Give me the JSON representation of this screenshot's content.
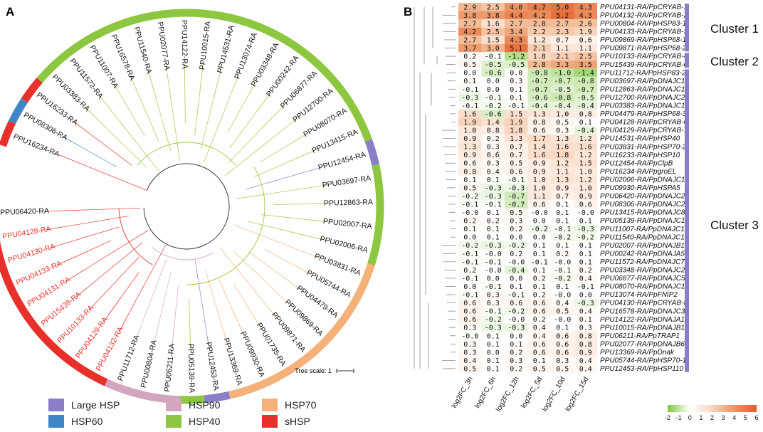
{
  "panel_a": {
    "letter": "A",
    "tree_scale_label": "Tree scale: 1",
    "leaves": [
      {
        "name": "PPU16234-RA",
        "group": "sHSP",
        "color": "black"
      },
      {
        "name": "PPU08306-RA",
        "group": "HSP60",
        "color": "black"
      },
      {
        "name": "PPU16233-RA",
        "group": "sHSP",
        "color": "black"
      },
      {
        "name": "PPU03383-RA",
        "group": "HSP40",
        "color": "black"
      },
      {
        "name": "PPU11572-RA",
        "group": "HSP40",
        "color": "black"
      },
      {
        "name": "PPU11007-RA",
        "group": "HSP40",
        "color": "black"
      },
      {
        "name": "PPU16578-RA",
        "group": "HSP40",
        "color": "black"
      },
      {
        "name": "PPU11540-RA",
        "group": "HSP40",
        "color": "black"
      },
      {
        "name": "PPU02077-RA",
        "group": "HSP40",
        "color": "black"
      },
      {
        "name": "PPU14122-RA",
        "group": "HSP40",
        "color": "black"
      },
      {
        "name": "PPU10015-RA",
        "group": "HSP40",
        "color": "black"
      },
      {
        "name": "PPU14531-RA",
        "group": "HSP40",
        "color": "black"
      },
      {
        "name": "PPU13074-RA",
        "group": "HSP40",
        "color": "black"
      },
      {
        "name": "PPU03348-RA",
        "group": "HSP40",
        "color": "black"
      },
      {
        "name": "PPU00242-RA",
        "group": "HSP40",
        "color": "black"
      },
      {
        "name": "PPU06877-RA",
        "group": "HSP40",
        "color": "black"
      },
      {
        "name": "PPU12700-RA",
        "group": "HSP40",
        "color": "black"
      },
      {
        "name": "PPU08070-RA",
        "group": "HSP40",
        "color": "black"
      },
      {
        "name": "PPU13415-RA",
        "group": "HSP40",
        "color": "black"
      },
      {
        "name": "PPU12454-RA",
        "group": "Large HSP",
        "color": "black"
      },
      {
        "name": "PPU03697-RA",
        "group": "HSP40",
        "color": "black"
      },
      {
        "name": "PPU12863-RA",
        "group": "HSP40",
        "color": "black"
      },
      {
        "name": "PPU02007-RA",
        "group": "HSP40",
        "color": "black"
      },
      {
        "name": "PPU02006-RA",
        "group": "HSP40",
        "color": "black"
      },
      {
        "name": "PPU03831-RA",
        "group": "HSP70",
        "color": "black"
      },
      {
        "name": "PPU05744-RA",
        "group": "HSP70",
        "color": "black"
      },
      {
        "name": "PPU04479-RA",
        "group": "HSP70",
        "color": "black"
      },
      {
        "name": "PPU09869-RA",
        "group": "HSP70",
        "color": "black"
      },
      {
        "name": "PPU09871-RA",
        "group": "HSP70",
        "color": "black"
      },
      {
        "name": "PPU01735-RA",
        "group": "HSP70",
        "color": "black"
      },
      {
        "name": "PPU09930-RA",
        "group": "HSP70",
        "color": "black"
      },
      {
        "name": "PPU13369-RA",
        "group": "HSP70",
        "color": "black"
      },
      {
        "name": "PPU12453-RA",
        "group": "Large HSP",
        "color": "black"
      },
      {
        "name": "PPU05139-RA",
        "group": "HSP40",
        "color": "black"
      },
      {
        "name": "PPU06211-RA",
        "group": "HSP90",
        "color": "black"
      },
      {
        "name": "PPU00804-RA",
        "group": "HSP90",
        "color": "black"
      },
      {
        "name": "PPU11712-RA",
        "group": "HSP90",
        "color": "black"
      },
      {
        "name": "PPU04132-RA",
        "group": "sHSP",
        "color": "red"
      },
      {
        "name": "PPU04129-RA",
        "group": "sHSP",
        "color": "red"
      },
      {
        "name": "PPU10133-RA",
        "group": "sHSP",
        "color": "red"
      },
      {
        "name": "PPU15439-RA",
        "group": "sHSP",
        "color": "red"
      },
      {
        "name": "PPU04131-RA",
        "group": "sHSP",
        "color": "red"
      },
      {
        "name": "PPU04133-RA",
        "group": "sHSP",
        "color": "red"
      },
      {
        "name": "PPU04130-RA",
        "group": "sHSP",
        "color": "red"
      },
      {
        "name": "PPU04128-RA",
        "group": "sHSP",
        "color": "red"
      },
      {
        "name": "PPU06420-RA",
        "group": "sHSP",
        "color": "black"
      }
    ],
    "legend": [
      {
        "label": "Large HSP",
        "color": "#8B7EC8"
      },
      {
        "label": "HSP90",
        "color": "#D4A5BE"
      },
      {
        "label": "HSP70",
        "color": "#F4B27A"
      },
      {
        "label": "HSP60",
        "color": "#3F86C6"
      },
      {
        "label": "HSP40",
        "color": "#8DC63F"
      },
      {
        "label": "sHSP",
        "color": "#E8302A"
      }
    ]
  },
  "panel_b": {
    "letter": "B",
    "columns": [
      "log2FC_3h",
      "log2FC_6h",
      "log2FC_12h",
      "log2FC_5d",
      "log2FC_10d",
      "log2FC_15d"
    ],
    "clusters": [
      "Cluster 1",
      "Cluster 2",
      "Cluster 3"
    ],
    "colorbar_ticks": [
      "-2",
      "-1",
      "0",
      "1",
      "2",
      "3",
      "4",
      "5",
      "6"
    ],
    "rows": [
      {
        "gene": "PPU04131-RA/PpCRYAB-1",
        "values": [
          "2.9",
          "2.5",
          "4.0",
          "4.7",
          "5.0",
          "4.3"
        ]
      },
      {
        "gene": "PPU04132-RA/PpCRYAB-2",
        "values": [
          "3.8",
          "3.8",
          "4.4",
          "4.2",
          "5.2",
          "4.3"
        ]
      },
      {
        "gene": "PPU00804-RA/PpHSP83-1",
        "values": [
          "2.7",
          "1.6",
          "2.7",
          "2.8",
          "2.7",
          "2.6"
        ]
      },
      {
        "gene": "PPU04133-RA/PpCRYAB-3",
        "values": [
          "4.2",
          "2.5",
          "3.4",
          "2.2",
          "2.3",
          "1.9"
        ]
      },
      {
        "gene": "PPU09869-RA/PpHSP68-1",
        "values": [
          "2.7",
          "1.5",
          "4.3",
          "1.2",
          "0.7",
          "0.6"
        ]
      },
      {
        "gene": "PPU09871-RA/PpHSP68-2",
        "values": [
          "3.7",
          "3.0",
          "5.1",
          "2.1",
          "1.1",
          "1.1"
        ]
      },
      {
        "gene": "PPU10133-RA/PpCRYAB-4",
        "values": [
          "0.2",
          "-0.1",
          "-1.2",
          "1.8",
          "2.1",
          "2.5"
        ]
      },
      {
        "gene": "PPU15439-RA/PpCRYAB-6",
        "values": [
          "0.5",
          "-0.5",
          "-0.5",
          "2.8",
          "3.3",
          "3.5"
        ]
      },
      {
        "gene": "PPU11712-RA/PpHSP83-2",
        "values": [
          "0.0",
          "-0.6",
          "0.0",
          "-0.8",
          "-1.0",
          "-1.4"
        ]
      },
      {
        "gene": "PPU03697-RA/PpDNAJC14",
        "values": [
          "0.1",
          "0.0",
          "0.3",
          "-0.7",
          "-0.7",
          "-0.8"
        ]
      },
      {
        "gene": "PPU12863-RA/PpDNAJC17",
        "values": [
          "-0.1",
          "0.0",
          "0.1",
          "-0.7",
          "-0.5",
          "-0.7"
        ]
      },
      {
        "gene": "PPU12700-RA/PpDNAJC2",
        "values": [
          "-0.3",
          "-0.1",
          "0.1",
          "-0.6",
          "-0.8",
          "-0.5"
        ]
      },
      {
        "gene": "PPU03383-RA/PpDNAJC11",
        "values": [
          "-0.1",
          "-0.2",
          "-0.1",
          "-0.4",
          "-0.4",
          "-0.4"
        ]
      },
      {
        "gene": "PPU04479-RA/PpHSP68-3",
        "values": [
          "1.6",
          "-0.6",
          "1.5",
          "1.3",
          "1.0",
          "0.8"
        ]
      },
      {
        "gene": "PPU04128-RA/PpCRYAB-6",
        "values": [
          "1.9",
          "1.4",
          "1.9",
          "0.8",
          "0.5",
          "0.1"
        ]
      },
      {
        "gene": "PPU04129-RA/PpCRYAB-7",
        "values": [
          "1.0",
          "0.8",
          "1.8",
          "0.6",
          "0.3",
          "-0.4"
        ]
      },
      {
        "gene": "PPU14531-RA/PpHSP40",
        "values": [
          "0.9",
          "0.2",
          "1.3",
          "1.7",
          "1.3",
          "1.2"
        ]
      },
      {
        "gene": "PPU03831-RA/PpHSP70-2",
        "values": [
          "1.3",
          "0.3",
          "0.7",
          "1.4",
          "1.6",
          "1.6"
        ]
      },
      {
        "gene": "PPU16233-RA/PpHSP10",
        "values": [
          "0.9",
          "0.6",
          "0.7",
          "1.6",
          "1.8",
          "1.2"
        ]
      },
      {
        "gene": "PPU12454-RA/PpClpB",
        "values": [
          "0.6",
          "0.3",
          "0.5",
          "0.9",
          "1.2",
          "1.5"
        ]
      },
      {
        "gene": "PPU16234-RA/PpgroEL",
        "values": [
          "0.8",
          "0.4",
          "0.6",
          "0.9",
          "1.1",
          "1.0"
        ]
      },
      {
        "gene": "PPU02006-RA/PpDNAJC18",
        "values": [
          "0.1",
          "0.1",
          "-0.1",
          "1.0",
          "1.3",
          "1.2"
        ]
      },
      {
        "gene": "PPU09930-RA/PpHSPA5",
        "values": [
          "0.5",
          "-0.3",
          "-0.3",
          "1.0",
          "0.9",
          "1.0"
        ]
      },
      {
        "gene": "PPU06420-RA/PpDNAJC22",
        "values": [
          "-0.2",
          "-0.3",
          "-0.7",
          "1.1",
          "0.7",
          "0.9"
        ]
      },
      {
        "gene": "PPU08306-RA/PpDNAJC28",
        "values": [
          "-0.1",
          "-0.1",
          "-0.7",
          "0.6",
          "0.1",
          "0.6"
        ]
      },
      {
        "gene": "PPU13415-RA/PpDNAJC8",
        "values": [
          "-0.0",
          "0.1",
          "0.5",
          "-0.0",
          "0.1",
          "-0.0"
        ]
      },
      {
        "gene": "PPU05139-RA/PpDNAJC13",
        "values": [
          "0.2",
          "0.2",
          "0.3",
          "0.0",
          "0.1",
          "0.1"
        ]
      },
      {
        "gene": "PPU11007-RA/PpDNAJC10",
        "values": [
          "0.1",
          "0.1",
          "0.2",
          "-0.2",
          "-0.1",
          "-0.3"
        ]
      },
      {
        "gene": "PPU11540-RA/PpDNAJC16",
        "values": [
          "0.0",
          "0.1",
          "0.0",
          "0.0",
          "-0.2",
          "-0.2"
        ]
      },
      {
        "gene": "PPU02007-RA/PpDNAJB12",
        "values": [
          "-0.2",
          "-0.3",
          "-0.2",
          "0.1",
          "0.1",
          "0.1"
        ]
      },
      {
        "gene": "PPU00242-RA/PpDNAJA5",
        "values": [
          "-0.1",
          "-0.0",
          "0.2",
          "0.1",
          "0.2",
          "0.1"
        ]
      },
      {
        "gene": "PPU11572-RA/PpDNAJC7",
        "values": [
          "-0.1",
          "-0.1",
          "-0.0",
          "-0.1",
          "-0.0",
          "0.1"
        ]
      },
      {
        "gene": "PPU03348-RA/PpDNAJC24",
        "values": [
          "0.2",
          "-0.0",
          "-0.4",
          "0.1",
          "-0.1",
          "0.2"
        ]
      },
      {
        "gene": "PPU06877-RA/PpDNAJC5",
        "values": [
          "-0.1",
          "0.0",
          "0.0",
          "0.2",
          "-0.2",
          "0.4"
        ]
      },
      {
        "gene": "PPU08070-RA/PpDNAJC1",
        "values": [
          "0.0",
          "-0.1",
          "0.1",
          "0.1",
          "0.1",
          "-0.1"
        ]
      },
      {
        "gene": "PPU13074-RA/PpFNIP2",
        "values": [
          "-0.1",
          "0.3",
          "-0.1",
          "0.2",
          "-0.0",
          "0.0"
        ]
      },
      {
        "gene": "PPU04130-RA/PpCRYAB-8",
        "values": [
          "0.6",
          "0.3",
          "0.6",
          "0.6",
          "0.4",
          "-0.3"
        ]
      },
      {
        "gene": "PPU16578-RA/PpDNAJC3",
        "values": [
          "0.6",
          "-0.1",
          "-0.2",
          "0.6",
          "0.5",
          "0.4"
        ]
      },
      {
        "gene": "PPU14122-RA/PpDNAJA1",
        "values": [
          "0.6",
          "-0.2",
          "-0.0",
          "0.2",
          "-0.0",
          "0.1"
        ]
      },
      {
        "gene": "PPU10015-RA/PpDNAJB11",
        "values": [
          "0.3",
          "-0.3",
          "-0.3",
          "0.4",
          "0.1",
          "0.3"
        ]
      },
      {
        "gene": "PPU06211-RA/PpTRAP1",
        "values": [
          "-0.0",
          "0.1",
          "0.0",
          "0.4",
          "0.6",
          "0.8"
        ]
      },
      {
        "gene": "PPU02077-RA/PpDNAJB6",
        "values": [
          "0.3",
          "0.1",
          "0.1",
          "0.6",
          "0.6",
          "0.8"
        ]
      },
      {
        "gene": "PPU13369-RA/PpDnak",
        "values": [
          "0.3",
          "0.0",
          "0.2",
          "0.6",
          "0.6",
          "0.9"
        ]
      },
      {
        "gene": "PPU05744-RA/PpHSP70-1",
        "values": [
          "0.4",
          "0.1",
          "0.3",
          "0.1",
          "0.3",
          "0.4"
        ]
      },
      {
        "gene": "PPU12453-RA/PpHSP110",
        "values": [
          "0.5",
          "0.1",
          "0.2",
          "0.5",
          "0.5",
          "0.4"
        ]
      }
    ]
  }
}
